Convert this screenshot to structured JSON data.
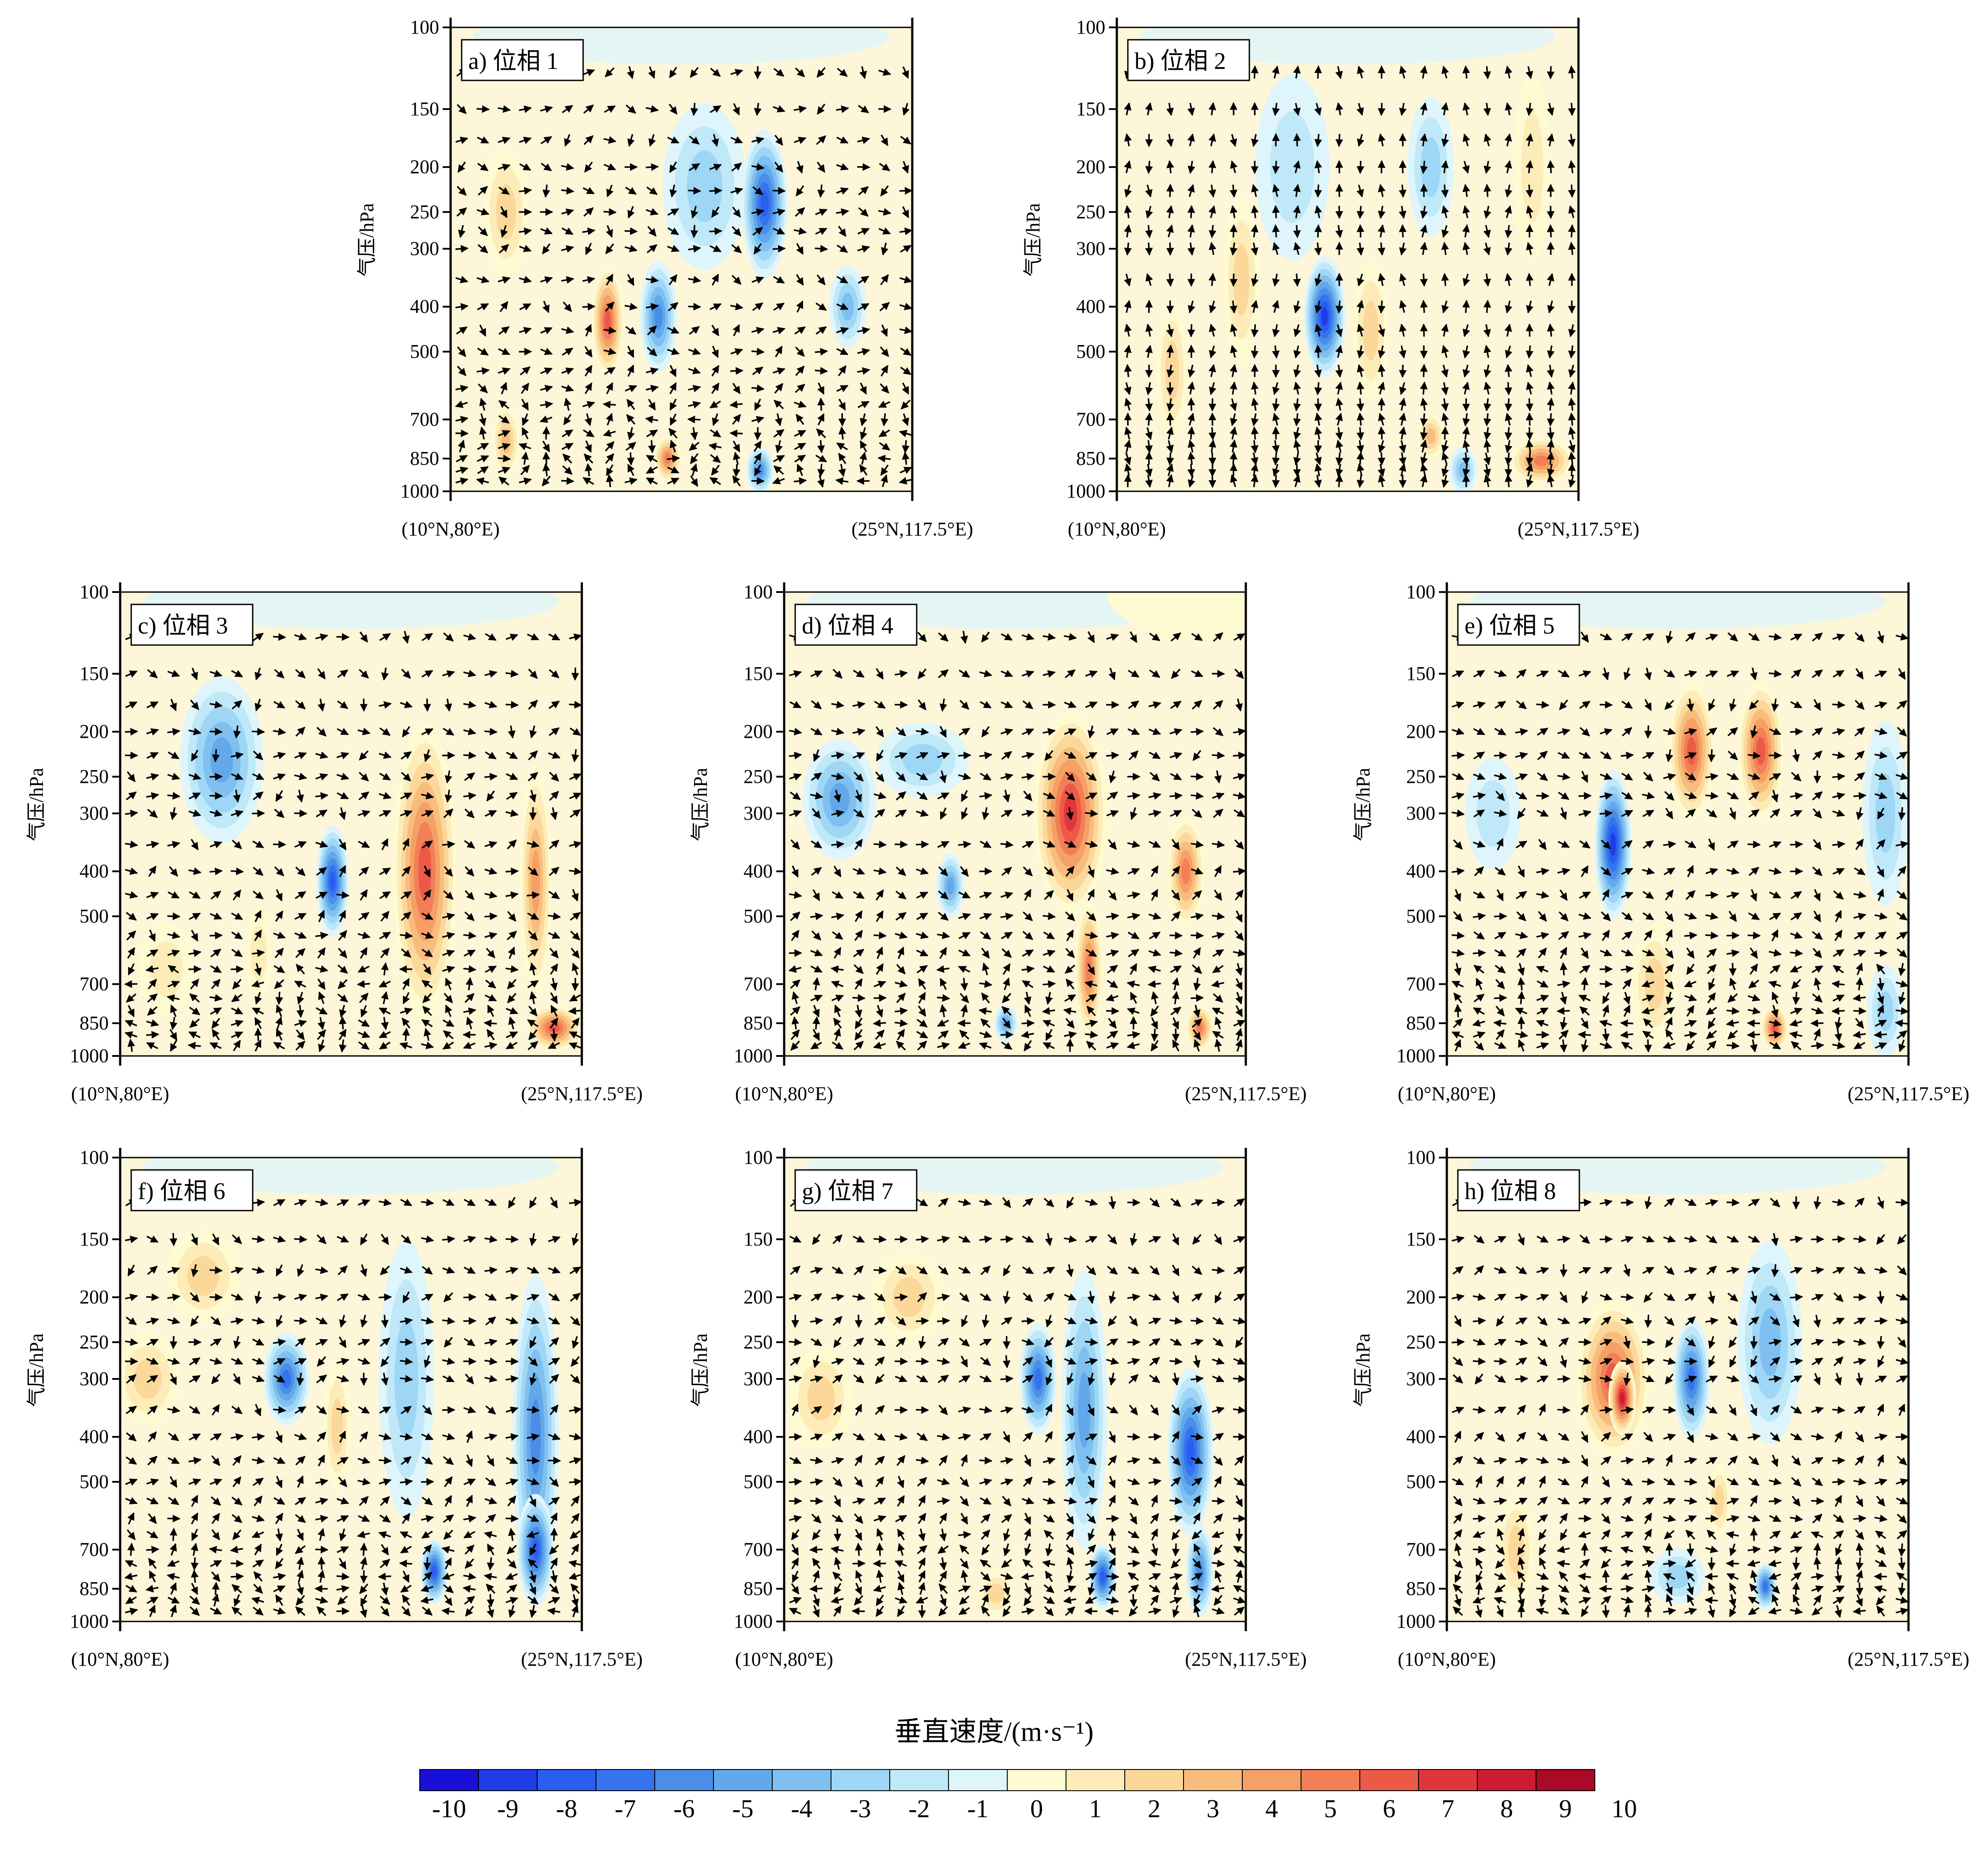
{
  "chart_data": {
    "type": "heatmap",
    "description_units": "vertical velocity shading with wind vectors, pressure-section from (10N,80E) to (25N,117.5E)",
    "y_axis": {
      "label": "气压/hPa",
      "scale": "log",
      "reversed": true,
      "ticks": [
        100,
        150,
        200,
        250,
        300,
        400,
        500,
        700,
        850,
        1000
      ],
      "ylim": [
        1000,
        100
      ]
    },
    "x_axis": {
      "left_label": "(10°N,80°E)",
      "right_label": "(25°N,117.5°E)",
      "xlim": [
        0,
        1
      ]
    },
    "colorbar": {
      "title": "垂直速度/(m·s⁻¹)",
      "levels": [
        -10,
        -9,
        -8,
        -7,
        -6,
        -5,
        -4,
        -3,
        -2,
        -1,
        0,
        1,
        2,
        3,
        4,
        5,
        6,
        7,
        8,
        9,
        10
      ],
      "colors": [
        "#1a0fd6",
        "#1f3ce8",
        "#2a5ef0",
        "#3574ee",
        "#4b8ee8",
        "#62a8ea",
        "#7fc0f0",
        "#9ed6f5",
        "#bfe8f8",
        "#def5fb",
        "#fefad2",
        "#fdecb8",
        "#fbd79a",
        "#f8bd7d",
        "#f5a066",
        "#f27f55",
        "#ec5a47",
        "#e0363b",
        "#cc1c33",
        "#a80a27"
      ]
    },
    "panels": [
      {
        "label": "a) 位相 1",
        "blobs": [
          {
            "x": 0.12,
            "p": 250,
            "w": 0.05,
            "h": 0.14,
            "v": 3
          },
          {
            "x": 0.34,
            "p": 430,
            "w": 0.035,
            "h": 0.12,
            "v": 7
          },
          {
            "x": 0.45,
            "p": 420,
            "w": 0.04,
            "h": 0.12,
            "v": -6
          },
          {
            "x": 0.55,
            "p": 220,
            "w": 0.09,
            "h": 0.18,
            "v": -3
          },
          {
            "x": 0.68,
            "p": 240,
            "w": 0.05,
            "h": 0.16,
            "v": -8
          },
          {
            "x": 0.86,
            "p": 400,
            "w": 0.04,
            "h": 0.09,
            "v": -4
          },
          {
            "x": 0.47,
            "p": 850,
            "w": 0.03,
            "h": 0.05,
            "v": 6
          },
          {
            "x": 0.67,
            "p": 900,
            "w": 0.03,
            "h": 0.05,
            "v": -6
          },
          {
            "x": 0.12,
            "p": 780,
            "w": 0.03,
            "h": 0.08,
            "v": 4
          }
        ]
      },
      {
        "label": "b) 位相 2",
        "blobs": [
          {
            "x": 0.12,
            "p": 550,
            "w": 0.035,
            "h": 0.15,
            "v": 3
          },
          {
            "x": 0.27,
            "p": 350,
            "w": 0.04,
            "h": 0.18,
            "v": 3
          },
          {
            "x": 0.45,
            "p": 420,
            "w": 0.045,
            "h": 0.13,
            "v": -9
          },
          {
            "x": 0.55,
            "p": 450,
            "w": 0.04,
            "h": 0.15,
            "v": 3
          },
          {
            "x": 0.38,
            "p": 200,
            "w": 0.08,
            "h": 0.2,
            "v": -2
          },
          {
            "x": 0.68,
            "p": 200,
            "w": 0.05,
            "h": 0.15,
            "v": -3
          },
          {
            "x": 0.9,
            "p": 200,
            "w": 0.04,
            "h": 0.2,
            "v": 2
          },
          {
            "x": 0.92,
            "p": 860,
            "w": 0.07,
            "h": 0.05,
            "v": 6
          },
          {
            "x": 0.75,
            "p": 900,
            "w": 0.03,
            "h": 0.05,
            "v": -4
          },
          {
            "x": 0.68,
            "p": 760,
            "w": 0.03,
            "h": 0.05,
            "v": 4
          }
        ]
      },
      {
        "label": "c) 位相 3",
        "blobs": [
          {
            "x": 0.22,
            "p": 230,
            "w": 0.09,
            "h": 0.18,
            "v": -5
          },
          {
            "x": 0.46,
            "p": 420,
            "w": 0.035,
            "h": 0.12,
            "v": -8
          },
          {
            "x": 0.66,
            "p": 400,
            "w": 0.07,
            "h": 0.32,
            "v": 7
          },
          {
            "x": 0.9,
            "p": 420,
            "w": 0.035,
            "h": 0.25,
            "v": 5
          },
          {
            "x": 0.94,
            "p": 870,
            "w": 0.06,
            "h": 0.05,
            "v": 7
          },
          {
            "x": 0.1,
            "p": 650,
            "w": 0.06,
            "h": 0.1,
            "v": 2
          },
          {
            "x": 0.3,
            "p": 600,
            "w": 0.03,
            "h": 0.1,
            "v": 2
          }
        ]
      },
      {
        "label": "d) 位相 4",
        "blobs": [
          {
            "x": 0.12,
            "p": 280,
            "w": 0.08,
            "h": 0.13,
            "v": -5
          },
          {
            "x": 0.3,
            "p": 230,
            "w": 0.1,
            "h": 0.08,
            "v": -3
          },
          {
            "x": 0.36,
            "p": 430,
            "w": 0.03,
            "h": 0.07,
            "v": -5
          },
          {
            "x": 0.62,
            "p": 300,
            "w": 0.08,
            "h": 0.22,
            "v": 8
          },
          {
            "x": 0.66,
            "p": 650,
            "w": 0.03,
            "h": 0.15,
            "v": 6
          },
          {
            "x": 0.87,
            "p": 400,
            "w": 0.04,
            "h": 0.12,
            "v": 6
          },
          {
            "x": 0.48,
            "p": 850,
            "w": 0.025,
            "h": 0.04,
            "v": -5
          },
          {
            "x": 0.9,
            "p": 870,
            "w": 0.03,
            "h": 0.05,
            "v": 6
          },
          {
            "x": 0.9,
            "p": 100,
            "w": 0.2,
            "h": 0.1,
            "v": 0
          }
        ]
      },
      {
        "label": "e) 位相 5",
        "blobs": [
          {
            "x": 0.36,
            "p": 350,
            "w": 0.04,
            "h": 0.16,
            "v": -9
          },
          {
            "x": 0.53,
            "p": 220,
            "w": 0.05,
            "h": 0.15,
            "v": 7
          },
          {
            "x": 0.68,
            "p": 220,
            "w": 0.05,
            "h": 0.15,
            "v": 7
          },
          {
            "x": 0.45,
            "p": 700,
            "w": 0.05,
            "h": 0.13,
            "v": 3
          },
          {
            "x": 0.71,
            "p": 870,
            "w": 0.03,
            "h": 0.05,
            "v": 7
          },
          {
            "x": 0.95,
            "p": 300,
            "w": 0.05,
            "h": 0.2,
            "v": -3
          },
          {
            "x": 0.1,
            "p": 300,
            "w": 0.06,
            "h": 0.12,
            "v": -2
          },
          {
            "x": 0.95,
            "p": 800,
            "w": 0.04,
            "h": 0.1,
            "v": -3
          }
        ]
      },
      {
        "label": "f) 位相 6",
        "blobs": [
          {
            "x": 0.18,
            "p": 180,
            "w": 0.08,
            "h": 0.1,
            "v": 3
          },
          {
            "x": 0.06,
            "p": 300,
            "w": 0.07,
            "h": 0.1,
            "v": 3
          },
          {
            "x": 0.36,
            "p": 300,
            "w": 0.05,
            "h": 0.1,
            "v": -7
          },
          {
            "x": 0.47,
            "p": 380,
            "w": 0.03,
            "h": 0.14,
            "v": 3
          },
          {
            "x": 0.62,
            "p": 300,
            "w": 0.06,
            "h": 0.3,
            "v": -3
          },
          {
            "x": 0.68,
            "p": 780,
            "w": 0.03,
            "h": 0.07,
            "v": -8
          },
          {
            "x": 0.9,
            "p": 400,
            "w": 0.05,
            "h": 0.35,
            "v": -6
          },
          {
            "x": 0.9,
            "p": 700,
            "w": 0.04,
            "h": 0.12,
            "v": -8
          }
        ]
      },
      {
        "label": "g) 位相 7",
        "blobs": [
          {
            "x": 0.08,
            "p": 330,
            "w": 0.07,
            "h": 0.11,
            "v": 3
          },
          {
            "x": 0.27,
            "p": 200,
            "w": 0.08,
            "h": 0.1,
            "v": 3
          },
          {
            "x": 0.55,
            "p": 300,
            "w": 0.04,
            "h": 0.12,
            "v": -7
          },
          {
            "x": 0.65,
            "p": 350,
            "w": 0.05,
            "h": 0.3,
            "v": -5
          },
          {
            "x": 0.69,
            "p": 800,
            "w": 0.03,
            "h": 0.07,
            "v": -8
          },
          {
            "x": 0.88,
            "p": 430,
            "w": 0.05,
            "h": 0.18,
            "v": -8
          },
          {
            "x": 0.9,
            "p": 780,
            "w": 0.03,
            "h": 0.1,
            "v": -6
          },
          {
            "x": 0.46,
            "p": 870,
            "w": 0.04,
            "h": 0.05,
            "v": 3
          }
        ]
      },
      {
        "label": "h) 位相 8",
        "blobs": [
          {
            "x": 0.36,
            "p": 300,
            "w": 0.08,
            "h": 0.17,
            "v": 7
          },
          {
            "x": 0.38,
            "p": 330,
            "w": 0.03,
            "h": 0.08,
            "v": 9
          },
          {
            "x": 0.53,
            "p": 300,
            "w": 0.04,
            "h": 0.13,
            "v": -7
          },
          {
            "x": 0.7,
            "p": 250,
            "w": 0.07,
            "h": 0.22,
            "v": -4
          },
          {
            "x": 0.69,
            "p": 840,
            "w": 0.025,
            "h": 0.05,
            "v": -7
          },
          {
            "x": 0.15,
            "p": 700,
            "w": 0.04,
            "h": 0.12,
            "v": 3
          },
          {
            "x": 0.59,
            "p": 550,
            "w": 0.025,
            "h": 0.08,
            "v": 3
          },
          {
            "x": 0.5,
            "p": 800,
            "w": 0.06,
            "h": 0.06,
            "v": -3
          }
        ]
      }
    ]
  }
}
